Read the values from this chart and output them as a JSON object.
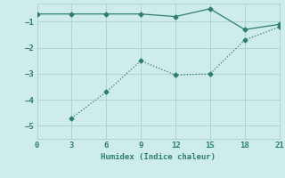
{
  "line1_x": [
    0,
    3,
    6,
    9,
    12,
    15,
    18,
    21
  ],
  "line1_y": [
    -0.7,
    -0.7,
    -0.7,
    -0.7,
    -0.8,
    -0.5,
    -1.3,
    -1.1
  ],
  "line2_x": [
    3,
    6,
    9,
    12,
    15,
    18,
    21
  ],
  "line2_y": [
    -4.7,
    -3.7,
    -2.5,
    -3.05,
    -3.0,
    -1.7,
    -1.2
  ],
  "color": "#2e7d72",
  "bg_color": "#ceecea",
  "grid_color": "#aed4d0",
  "xlabel": "Humidex (Indice chaleur)",
  "xlim": [
    0,
    21
  ],
  "ylim": [
    -5.5,
    -0.3
  ],
  "xticks": [
    0,
    3,
    6,
    9,
    12,
    15,
    18,
    21
  ],
  "yticks": [
    -5,
    -4,
    -3,
    -2,
    -1
  ]
}
